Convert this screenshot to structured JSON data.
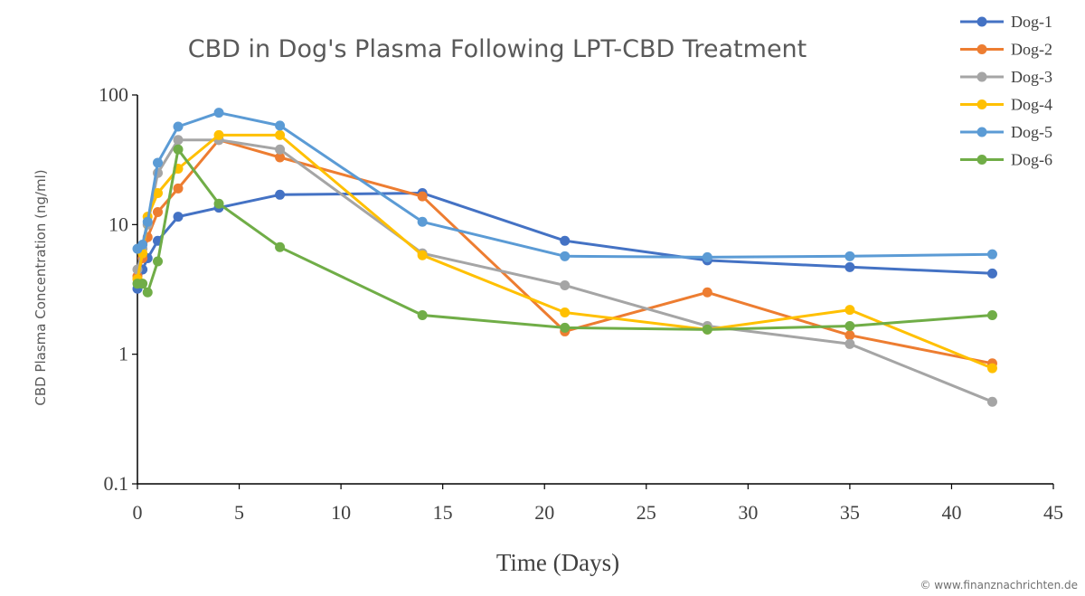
{
  "chart_data": {
    "type": "line",
    "title": "CBD in Dog's Plasma Following LPT-CBD Treatment",
    "xlabel": "Time (Days)",
    "ylabel": "CBD Plasma Concentration (ng/ml)",
    "xlim": [
      0,
      45
    ],
    "ylim": [
      0.1,
      100
    ],
    "yscale": "log",
    "grid": false,
    "legend_position": "top-right",
    "x_ticks": [
      "0",
      "5",
      "10",
      "15",
      "20",
      "25",
      "30",
      "35",
      "40",
      "45"
    ],
    "y_ticks": [
      "0.1",
      "1",
      "10",
      "100"
    ],
    "series": [
      {
        "name": "Dog-1",
        "color": "#4472C4",
        "x": [
          0,
          0.25,
          0.5,
          1,
          2,
          4,
          7,
          14,
          21,
          28,
          35,
          42
        ],
        "y": [
          3.2,
          4.5,
          5.5,
          7.5,
          11.5,
          13.5,
          17,
          17.5,
          7.5,
          5.3,
          4.7,
          4.2
        ]
      },
      {
        "name": "Dog-2",
        "color": "#ED7D31",
        "x": [
          0,
          0.25,
          0.5,
          1,
          2,
          4,
          7,
          14,
          21,
          28,
          35,
          42
        ],
        "y": [
          4,
          5.5,
          8,
          12.5,
          19,
          45,
          33,
          16.5,
          1.5,
          3,
          1.4,
          0.85
        ]
      },
      {
        "name": "Dog-3",
        "color": "#A5A5A5",
        "x": [
          0,
          0.25,
          0.5,
          1,
          2,
          4,
          7,
          14,
          21,
          28,
          35,
          42
        ],
        "y": [
          4.5,
          6.5,
          10,
          25,
          45,
          45,
          38,
          6,
          3.4,
          1.65,
          1.2,
          0.43
        ]
      },
      {
        "name": "Dog-4",
        "color": "#FFC000",
        "x": [
          0,
          0.25,
          0.5,
          1,
          2,
          4,
          7,
          14,
          21,
          28,
          35,
          42
        ],
        "y": [
          3.8,
          6,
          11.5,
          17.5,
          27,
          49,
          49,
          5.8,
          2.1,
          1.55,
          2.2,
          0.78
        ]
      },
      {
        "name": "Dog-5",
        "color": "#5B9BD5",
        "x": [
          0,
          0.25,
          0.5,
          1,
          2,
          4,
          7,
          14,
          21,
          28,
          35,
          42
        ],
        "y": [
          6.5,
          7,
          10.5,
          30,
          57,
          73,
          58,
          10.5,
          5.7,
          5.6,
          5.7,
          5.9
        ]
      },
      {
        "name": "Dog-6",
        "color": "#70AD47",
        "x": [
          0,
          0.25,
          0.5,
          1,
          2,
          4,
          7,
          14,
          21,
          28,
          35,
          42
        ],
        "y": [
          3.5,
          3.5,
          3,
          5.2,
          38,
          14.5,
          6.7,
          2,
          1.6,
          1.55,
          1.65,
          2
        ]
      }
    ]
  },
  "watermark": "© www.finanznachrichten.de"
}
